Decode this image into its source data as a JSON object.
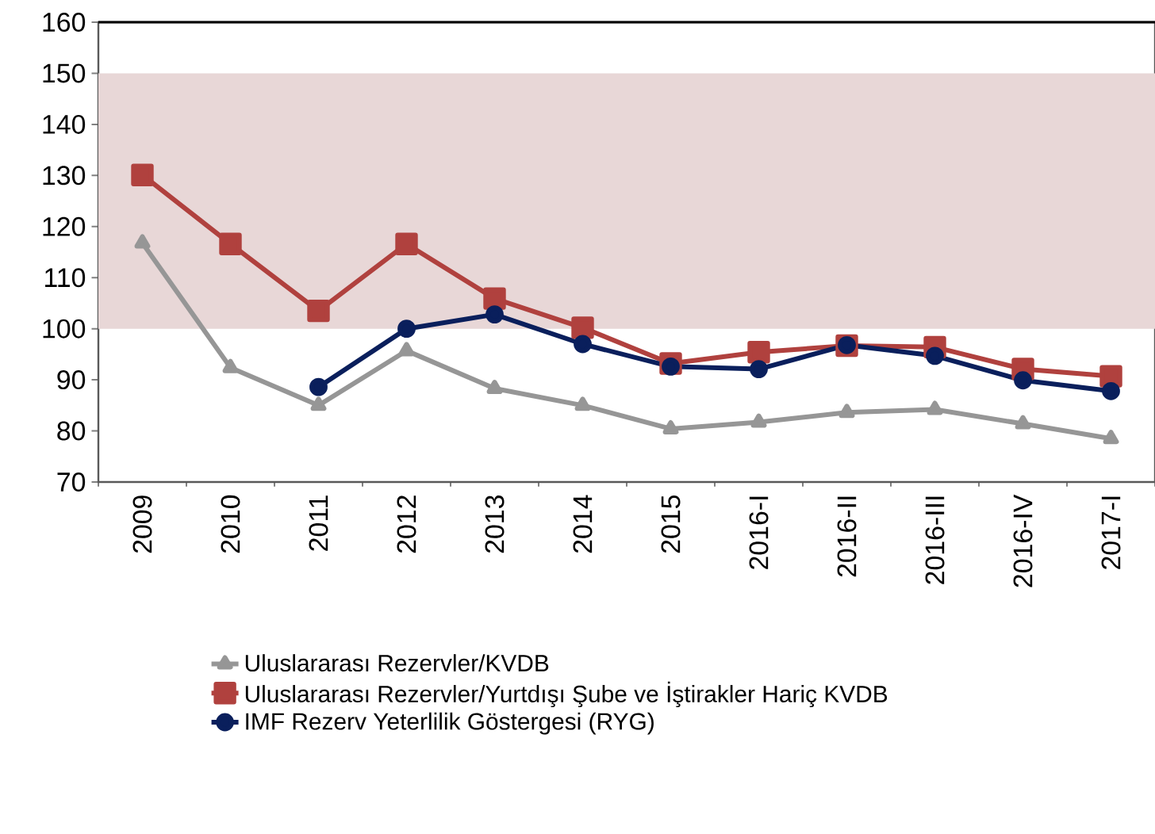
{
  "chart_data": {
    "type": "line",
    "categories": [
      "2009",
      "2010",
      "2011",
      "2012",
      "2013",
      "2014",
      "2015",
      "2016-I",
      "2016-II",
      "2016-III",
      "2016-IV",
      "2017-I"
    ],
    "series": [
      {
        "name": "Uluslararası Rezervler/KVDB",
        "color": "#969696",
        "marker": "triangle",
        "values": [
          116.8,
          92.4,
          85.0,
          95.7,
          88.3,
          85.0,
          80.4,
          81.7,
          83.6,
          84.2,
          81.4,
          78.5
        ]
      },
      {
        "name": "Uluslararası Rezervler/Yurtdışı Şube ve İştirakler Hariç KVDB",
        "color": "#b0413e",
        "marker": "square",
        "values": [
          130.1,
          116.6,
          103.5,
          116.6,
          105.9,
          100.2,
          93.2,
          95.4,
          96.7,
          96.4,
          92.1,
          90.7
        ]
      },
      {
        "name": "IMF Rezerv Yeterlilik Göstergesi (RYG)",
        "color": "#0a1f5c",
        "marker": "circle",
        "values": [
          null,
          null,
          88.6,
          100.0,
          102.8,
          97.0,
          92.6,
          92.1,
          96.8,
          94.7,
          89.9,
          87.8
        ]
      }
    ],
    "ylim": [
      70,
      160
    ],
    "yticks": [
      70,
      80,
      90,
      100,
      110,
      120,
      130,
      140,
      150,
      160
    ],
    "bands": [
      {
        "axis": "y",
        "from": 100,
        "to": 150,
        "color": "#e8d7d7"
      }
    ],
    "grid": false,
    "legend": "bottom",
    "line_style": "solid"
  }
}
